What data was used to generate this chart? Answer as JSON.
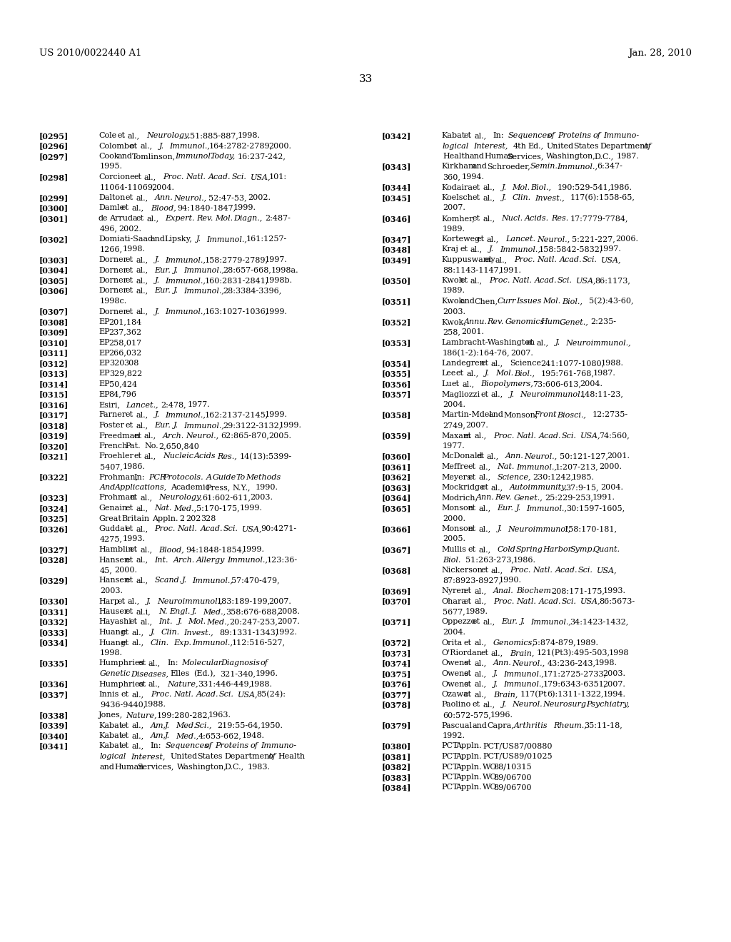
{
  "background_color": "#ffffff",
  "header_left": "US 2010/0022440 A1",
  "header_right": "Jan. 28, 2010",
  "page_number": "33",
  "left_column": [
    {
      "ref": "[0295]",
      "lines": [
        "Cole et al., Neurology, 51:885-887, 1998."
      ]
    },
    {
      "ref": "[0296]",
      "lines": [
        "Colombo et al., J. Immunol., 164:2782-2789, 2000."
      ]
    },
    {
      "ref": "[0297]",
      "lines": [
        "Cook and Tomlinson, Immunol. Today, 16:237-242,",
        "1995."
      ]
    },
    {
      "ref": "[0298]",
      "lines": [
        "Corcione et al., Proc. Natl. Acad. Sci. USA, 101:",
        "11064-11069, 2004."
      ]
    },
    {
      "ref": "[0299]",
      "lines": [
        "Dalton et al., Ann. Neurol., 52:47-53, 2002."
      ]
    },
    {
      "ref": "[0300]",
      "lines": [
        "Damle et al., Blood, 94:1840-1847, 1999."
      ]
    },
    {
      "ref": "[0301]",
      "lines": [
        "de Arruda et al., Expert. Rev. Mol. Diagn., 2:487-",
        "496, 2002."
      ]
    },
    {
      "ref": "[0302]",
      "lines": [
        "Domiati-Saad and Lipsky, J. Immunol., 161:1257-",
        "1266, 1998."
      ]
    },
    {
      "ref": "[0303]",
      "lines": [
        "Dorner et al., J. Immunol., 158:2779-2789, 1997."
      ]
    },
    {
      "ref": "[0304]",
      "lines": [
        "Dorner et al., Eur. J. Immunol., 28:657-668, 1998a."
      ]
    },
    {
      "ref": "[0305]",
      "lines": [
        "Dorner et al., J. Immunol., 160:2831-2841, 1998b."
      ]
    },
    {
      "ref": "[0306]",
      "lines": [
        "Dorner et al., Eur. J. Immunol., 28:3384-3396,",
        "1998c."
      ]
    },
    {
      "ref": "[0307]",
      "lines": [
        "Dorner et al., J. Immunol., 163:1027-1036, 1999."
      ]
    },
    {
      "ref": "[0308]",
      "lines": [
        "EP 201,184"
      ]
    },
    {
      "ref": "[0309]",
      "lines": [
        "EP 237,362"
      ]
    },
    {
      "ref": "[0310]",
      "lines": [
        "EP 258,017"
      ]
    },
    {
      "ref": "[0311]",
      "lines": [
        "EP 266,032"
      ]
    },
    {
      "ref": "[0312]",
      "lines": [
        "EP 320 308"
      ]
    },
    {
      "ref": "[0313]",
      "lines": [
        "EP 329,822"
      ]
    },
    {
      "ref": "[0314]",
      "lines": [
        "EP 50,424"
      ]
    },
    {
      "ref": "[0315]",
      "lines": [
        "EP 84,796"
      ]
    },
    {
      "ref": "[0316]",
      "lines": [
        "Esiri, Lancet., 2:478, 1977."
      ]
    },
    {
      "ref": "[0317]",
      "lines": [
        "Farner et al., J. Immunol., 162:2137-2145, 1999."
      ]
    },
    {
      "ref": "[0318]",
      "lines": [
        "Foster et al., Eur. J. Immunol., 29:3122-3132, 1999."
      ]
    },
    {
      "ref": "[0319]",
      "lines": [
        "Freedman et al., Arch. Neurol., 62:865-870, 2005."
      ]
    },
    {
      "ref": "[0320]",
      "lines": [
        "French Pat. No. 2,650,840"
      ]
    },
    {
      "ref": "[0321]",
      "lines": [
        "Froehler et al., Nucleic Acids Res., 14(13):5399-",
        "5407, 1986."
      ]
    },
    {
      "ref": "[0322]",
      "lines": [
        "Frohman, In: PCR Protocols. A Guide To Methods",
        "And Applications, Academic Press, N.Y., 1990."
      ]
    },
    {
      "ref": "[0323]",
      "lines": [
        "Frohman et al., Neurology, 61:602-611, 2003."
      ]
    },
    {
      "ref": "[0324]",
      "lines": [
        "Genain et al., Nat. Med., 5:170-175, 1999."
      ]
    },
    {
      "ref": "[0325]",
      "lines": [
        "Great Britain Appln. 2 202 328"
      ]
    },
    {
      "ref": "[0326]",
      "lines": [
        "Guddat et al., Proc. Natl. Acad. Sci. USA, 90:4271-",
        "4275, 1993."
      ]
    },
    {
      "ref": "[0327]",
      "lines": [
        "Hamblin et al., Blood, 94:1848-1854, 1999."
      ]
    },
    {
      "ref": "[0328]",
      "lines": [
        "Hansen et al., Int. Arch. Allergy Immunol., 123:36-",
        "45, 2000."
      ]
    },
    {
      "ref": "[0329]",
      "lines": [
        "Hansen et al., Scand. J. Immunol., 57:470-479,",
        "2003."
      ]
    },
    {
      "ref": "[0330]",
      "lines": [
        "Harp et al., J. Neuroimmunol., 183:189-199, 2007."
      ]
    },
    {
      "ref": "[0331]",
      "lines": [
        "Hauser et al.i, N. Engl. J. Med., 358:676-688, 2008."
      ]
    },
    {
      "ref": "[0332]",
      "lines": [
        "Hayashi et al., Int. J. Mol. Med., 20:247-253, 2007."
      ]
    },
    {
      "ref": "[0333]",
      "lines": [
        "Huang et al., J. Clin. Invest., 89:1331-1343, 1992."
      ]
    },
    {
      "ref": "[0334]",
      "lines": [
        "Huang et al., Clin. Exp. Immunol., 112:516-527,",
        "1998."
      ]
    },
    {
      "ref": "[0335]",
      "lines": [
        "Humphries et al., In: Molecular Diagnosis of",
        "Genetic Diseases, Elles (Ed.), 321-340, 1996."
      ]
    },
    {
      "ref": "[0336]",
      "lines": [
        "Humphries et al., Nature, 331:446-449, 1988."
      ]
    },
    {
      "ref": "[0337]",
      "lines": [
        "Innis et al., Proc. Natl. Acad. Sci. USA, 85(24):",
        "9436-9440, 1988."
      ]
    },
    {
      "ref": "[0338]",
      "lines": [
        "Jones, Nature, 199:280-282, 1963."
      ]
    },
    {
      "ref": "[0339]",
      "lines": [
        "Kabat et al., Am. J. Med. Sci., 219:55-64, 1950."
      ]
    },
    {
      "ref": "[0340]",
      "lines": [
        "Kabat et al., Am. J. Med., 4:653-662, 1948."
      ]
    },
    {
      "ref": "[0341]",
      "lines": [
        "Kabat et al., In: Sequences of Proteins of Immuno-",
        "logical Interest, United States Department of Health",
        "and Human Services, Washington, D.C., 1983."
      ]
    }
  ],
  "right_column": [
    {
      "ref": "[0342]",
      "lines": [
        "Kabat et al., In: Sequences of Proteins of Immuno-",
        "logical Interest, 4th Ed., United States Department of",
        "Health and Human Services, Washington, D.C., 1987."
      ]
    },
    {
      "ref": "[0343]",
      "lines": [
        "Kirkham and Schroeder, Semin. Immunol., 6:347-",
        "360, 1994."
      ]
    },
    {
      "ref": "[0344]",
      "lines": [
        "Kodaira et al., J. Mol. Biol., 190:529-541, 1986."
      ]
    },
    {
      "ref": "[0345]",
      "lines": [
        "Koelsch et al., J. Clin. Invest., 117(6):1558-65,",
        "2007."
      ]
    },
    {
      "ref": "[0346]",
      "lines": [
        "Komher, et al., Nucl. Acids. Res. 17:7779-7784,",
        "1989."
      ]
    },
    {
      "ref": "[0347]",
      "lines": [
        "Korteweg et al., Lancet. Neurol., 5:221-227, 2006."
      ]
    },
    {
      "ref": "[0348]",
      "lines": [
        "Kraj et al., J. Immunol., 158:5842-5832, 1997."
      ]
    },
    {
      "ref": "[0349]",
      "lines": [
        "Kuppuswamy et al., Proc. Natl. Acad. Sci. USA,",
        "88:1143-1147, 1991."
      ]
    },
    {
      "ref": "[0350]",
      "lines": [
        "Kwoh et al., Proc. Natl. Acad. Sci. USA, 86:1173,",
        "1989."
      ]
    },
    {
      "ref": "[0351]",
      "lines": [
        "Kwok and Chen, Curr Issues Mol. Biol., 5(2):43-60,",
        "2003."
      ]
    },
    {
      "ref": "[0352]",
      "lines": [
        "Kwok, Annu. Rev. Genomics Hum. Genet., 2:235-",
        "258, 2001."
      ]
    },
    {
      "ref": "[0353]",
      "lines": [
        "Lambracht-Washington et al., J. Neuroimmunol.,",
        "186(1-2):164-76, 2007."
      ]
    },
    {
      "ref": "[0354]",
      "lines": [
        "Landegren et al., Science 241:1077-1080, 1988."
      ]
    },
    {
      "ref": "[0355]",
      "lines": [
        "Lee et al., J. Mol. Biol., 195:761-768, 1987."
      ]
    },
    {
      "ref": "[0356]",
      "lines": [
        "Lu et al., Biopolymers, 73:606-613, 2004."
      ]
    },
    {
      "ref": "[0357]",
      "lines": [
        "Magliozzi et al., J. Neuroimmunol., 148:11-23,",
        "2004."
      ]
    },
    {
      "ref": "[0358]",
      "lines": [
        "Martin-Mdel and Monson, Front Biosci., 12:2735-",
        "2749, 2007."
      ]
    },
    {
      "ref": "[0359]",
      "lines": [
        "Maxam et al., Proc. Natl. Acad. Sci. USA, 74:560,",
        "1977."
      ]
    },
    {
      "ref": "[0360]",
      "lines": [
        "McDonald et al., Ann. Neurol., 50:121-127, 2001."
      ]
    },
    {
      "ref": "[0361]",
      "lines": [
        "Meffre et al., Nat. Immunol., 1:207-213, 2000."
      ]
    },
    {
      "ref": "[0362]",
      "lines": [
        "Meyers et al., Science, 230:1242, 1985."
      ]
    },
    {
      "ref": "[0363]",
      "lines": [
        "Mockridge et al., Autoimmunity, 37:9-15, 2004."
      ]
    },
    {
      "ref": "[0364]",
      "lines": [
        "Modrich, Ann. Rev. Genet., 25:229-253, 1991."
      ]
    },
    {
      "ref": "[0365]",
      "lines": [
        "Monson et al., Eur. J. Immunol., 30:1597-1605,",
        "2000."
      ]
    },
    {
      "ref": "[0366]",
      "lines": [
        "Monson et al., J. Neuroimmunol, 158:170-181,",
        "2005."
      ]
    },
    {
      "ref": "[0367]",
      "lines": [
        "Mullis et al., Cold Spring Harbor Symp. Quant.",
        "Biol. 51:263-273, 1986."
      ]
    },
    {
      "ref": "[0368]",
      "lines": [
        "Nickerson et al., Proc. Natl. Acad. Sci. USA,",
        "87:8923-8927, 1990."
      ]
    },
    {
      "ref": "[0369]",
      "lines": [
        "Nyren et al., Anal. Biochem. 208:171-175, 1993."
      ]
    },
    {
      "ref": "[0370]",
      "lines": [
        "Ohara et al., Proc. Natl. Acad. Sci. USA, 86:5673-",
        "5677, 1989."
      ]
    },
    {
      "ref": "[0371]",
      "lines": [
        "Oppezzo et al., Eur. J. Immunol., 34:1423-1432,",
        "2004."
      ]
    },
    {
      "ref": "[0372]",
      "lines": [
        "Orita et al., Genomics, 5:874-879, 1989."
      ]
    },
    {
      "ref": "[0373]",
      "lines": [
        "O'Riordan et al., Brain, 121(Pt3):495-503, 1998"
      ]
    },
    {
      "ref": "[0374]",
      "lines": [
        "Owens et al., Ann. Neurol., 43:236-243, 1998."
      ]
    },
    {
      "ref": "[0375]",
      "lines": [
        "Owens et al., J. Immunol., 171:2725-2733, 2003."
      ]
    },
    {
      "ref": "[0376]",
      "lines": [
        "Owens et al., J. Immunol., 179:6343-6351, 2007."
      ]
    },
    {
      "ref": "[0377]",
      "lines": [
        "Ozawa et al., Brain, 117(Pt 6):1311-1322, 1994."
      ]
    },
    {
      "ref": "[0378]",
      "lines": [
        "Paolino et al., J. Neurol. Neurosurg. Psychiatry,",
        "60:572-575, 1996."
      ]
    },
    {
      "ref": "[0379]",
      "lines": [
        "Pascual and Capra, Arthritis Rheum., 35:11-18,",
        "1992."
      ]
    },
    {
      "ref": "[0380]",
      "lines": [
        "PCT Appln. PCT/US87/00880"
      ]
    },
    {
      "ref": "[0381]",
      "lines": [
        "PCT Appln. PCT/US89/01025"
      ]
    },
    {
      "ref": "[0382]",
      "lines": [
        "PCT Appln. WO 88/10315"
      ]
    },
    {
      "ref": "[0383]",
      "lines": [
        "PCT Appln. WO 89/06700"
      ]
    },
    {
      "ref": "[0384]",
      "lines": [
        "PCT Appln. WO 89/06700"
      ]
    }
  ],
  "italic_words": {
    "[0295]": [
      "Neurology,"
    ],
    "[0296]": [
      "J.",
      "Immunol.,"
    ],
    "[0297]": [
      "Immunol.",
      "Today,"
    ],
    "[0298]": [
      "Proc.",
      "Natl.",
      "Acad.",
      "Sci.",
      "USA,"
    ],
    "[0299]": [
      "Ann.",
      "Neurol.,"
    ],
    "[0300]": [
      "Blood,"
    ],
    "[0301]": [
      "Expert.",
      "Rev.",
      "Mol.",
      "Diagn.,"
    ],
    "[0302]": [
      "J.",
      "Immunol.,"
    ],
    "[0303]": [
      "J.",
      "Immunol.,"
    ],
    "[0304]": [
      "Eur.",
      "J.",
      "Immunol.,"
    ],
    "[0305]": [
      "J.",
      "Immunol.,"
    ],
    "[0306]": [
      "Eur.",
      "J.",
      "Immunol.,"
    ],
    "[0307]": [
      "J.",
      "Immunol.,"
    ],
    "[0316]": [
      "Lancet.,"
    ],
    "[0317]": [
      "J.",
      "Immunol.,"
    ],
    "[0318]": [
      "Eur.",
      "J.",
      "Immunol.,"
    ],
    "[0319]": [
      "Arch.",
      "Neurol.,"
    ],
    "[0321]": [
      "Nucleic",
      "Acids",
      "Res.,"
    ],
    "[0322]": [
      "PCR",
      "Protocols.",
      "A",
      "Guide",
      "To",
      "Methods",
      "And",
      "Applications,"
    ],
    "[0323]": [
      "Neurology,"
    ],
    "[0324]": [
      "Nat.",
      "Med.,"
    ],
    "[0326]": [
      "Proc.",
      "Natl.",
      "Acad.",
      "Sci.",
      "USA,"
    ],
    "[0327]": [
      "Blood,"
    ],
    "[0328]": [
      "Int.",
      "Arch.",
      "Allergy",
      "Immunol.,"
    ],
    "[0329]": [
      "Scand.",
      "J.",
      "Immunol.,"
    ],
    "[0330]": [
      "J.",
      "Neuroimmunol.,"
    ],
    "[0331]": [
      "N.",
      "Engl.",
      "J.",
      "Med.,"
    ],
    "[0332]": [
      "Int.",
      "J.",
      "Mol.",
      "Med.,"
    ],
    "[0333]": [
      "J.",
      "Clin.",
      "Invest.,"
    ],
    "[0334]": [
      "Clin.",
      "Exp.",
      "Immunol.,"
    ],
    "[0335]": [
      "Molecular",
      "Diagnosis",
      "of",
      "Genetic",
      "Diseases,"
    ],
    "[0336]": [
      "Nature,"
    ],
    "[0337]": [
      "Proc.",
      "Natl.",
      "Acad.",
      "Sci.",
      "USA,"
    ],
    "[0338]": [
      "Nature,"
    ],
    "[0339]": [
      "Am.",
      "J.",
      "Med.",
      "Sci.,"
    ],
    "[0340]": [
      "Am.",
      "J.",
      "Med.,"
    ],
    "[0341]": [
      "Sequences",
      "of",
      "Proteins",
      "of",
      "Immuno-",
      "logical",
      "Interest,"
    ],
    "[0342]": [
      "Sequences",
      "of",
      "Proteins",
      "of",
      "Immuno-",
      "logical",
      "Interest,"
    ],
    "[0343]": [
      "Semin.",
      "Immunol.,"
    ],
    "[0344]": [
      "J.",
      "Mol.",
      "Biol.,"
    ],
    "[0345]": [
      "J.",
      "Clin.",
      "Invest.,"
    ],
    "[0346]": [
      "Nucl.",
      "Acids.",
      "Res."
    ],
    "[0347]": [
      "Lancet.",
      "Neurol.,"
    ],
    "[0348]": [
      "J.",
      "Immunol.,"
    ],
    "[0349]": [
      "Proc.",
      "Natl.",
      "Acad.",
      "Sci.",
      "USA,"
    ],
    "[0350]": [
      "Proc.",
      "Natl.",
      "Acad.",
      "Sci.",
      "USA,"
    ],
    "[0351]": [
      "Curr",
      "Issues",
      "Mol.",
      "Biol.,"
    ],
    "[0352]": [
      "Annu.",
      "Rev.",
      "Genomics",
      "Hum.",
      "Genet.,"
    ],
    "[0353]": [
      "J.",
      "Neuroimmunol.,"
    ],
    "[0355]": [
      "J.",
      "Mol.",
      "Biol.,"
    ],
    "[0356]": [
      "Biopolymers,"
    ],
    "[0357]": [
      "J.",
      "Neuroimmunol.,"
    ],
    "[0358]": [
      "Front",
      "Biosci.,"
    ],
    "[0359]": [
      "Proc.",
      "Natl.",
      "Acad.",
      "Sci.",
      "USA,"
    ],
    "[0360]": [
      "Ann.",
      "Neurol.,"
    ],
    "[0361]": [
      "Nat.",
      "Immunol.,"
    ],
    "[0362]": [
      "Science,"
    ],
    "[0363]": [
      "Autoimmunity,"
    ],
    "[0364]": [
      "Ann.",
      "Rev.",
      "Genet.,"
    ],
    "[0365]": [
      "Eur.",
      "J.",
      "Immunol.,"
    ],
    "[0366]": [
      "J.",
      "Neuroimmunol,"
    ],
    "[0367]": [
      "Cold",
      "Spring",
      "Harbor",
      "Symp.",
      "Quant.",
      "Biol."
    ],
    "[0368]": [
      "Proc.",
      "Natl.",
      "Acad.",
      "Sci.",
      "USA,"
    ],
    "[0369]": [
      "Anal.",
      "Biochem."
    ],
    "[0370]": [
      "Proc.",
      "Natl.",
      "Acad.",
      "Sci.",
      "USA,"
    ],
    "[0371]": [
      "Eur.",
      "J.",
      "Immunol.,"
    ],
    "[0372]": [
      "Genomics,"
    ],
    "[0373]": [
      "Brain,"
    ],
    "[0374]": [
      "Ann.",
      "Neurol.,"
    ],
    "[0375]": [
      "J.",
      "Immunol.,"
    ],
    "[0376]": [
      "J.",
      "Immunol.,"
    ],
    "[0377]": [
      "Brain,"
    ],
    "[0378]": [
      "J.",
      "Neurol.",
      "Neurosurg.",
      "Psychiatry,"
    ],
    "[0379]": [
      "Arthritis",
      "Rheum.,"
    ]
  }
}
